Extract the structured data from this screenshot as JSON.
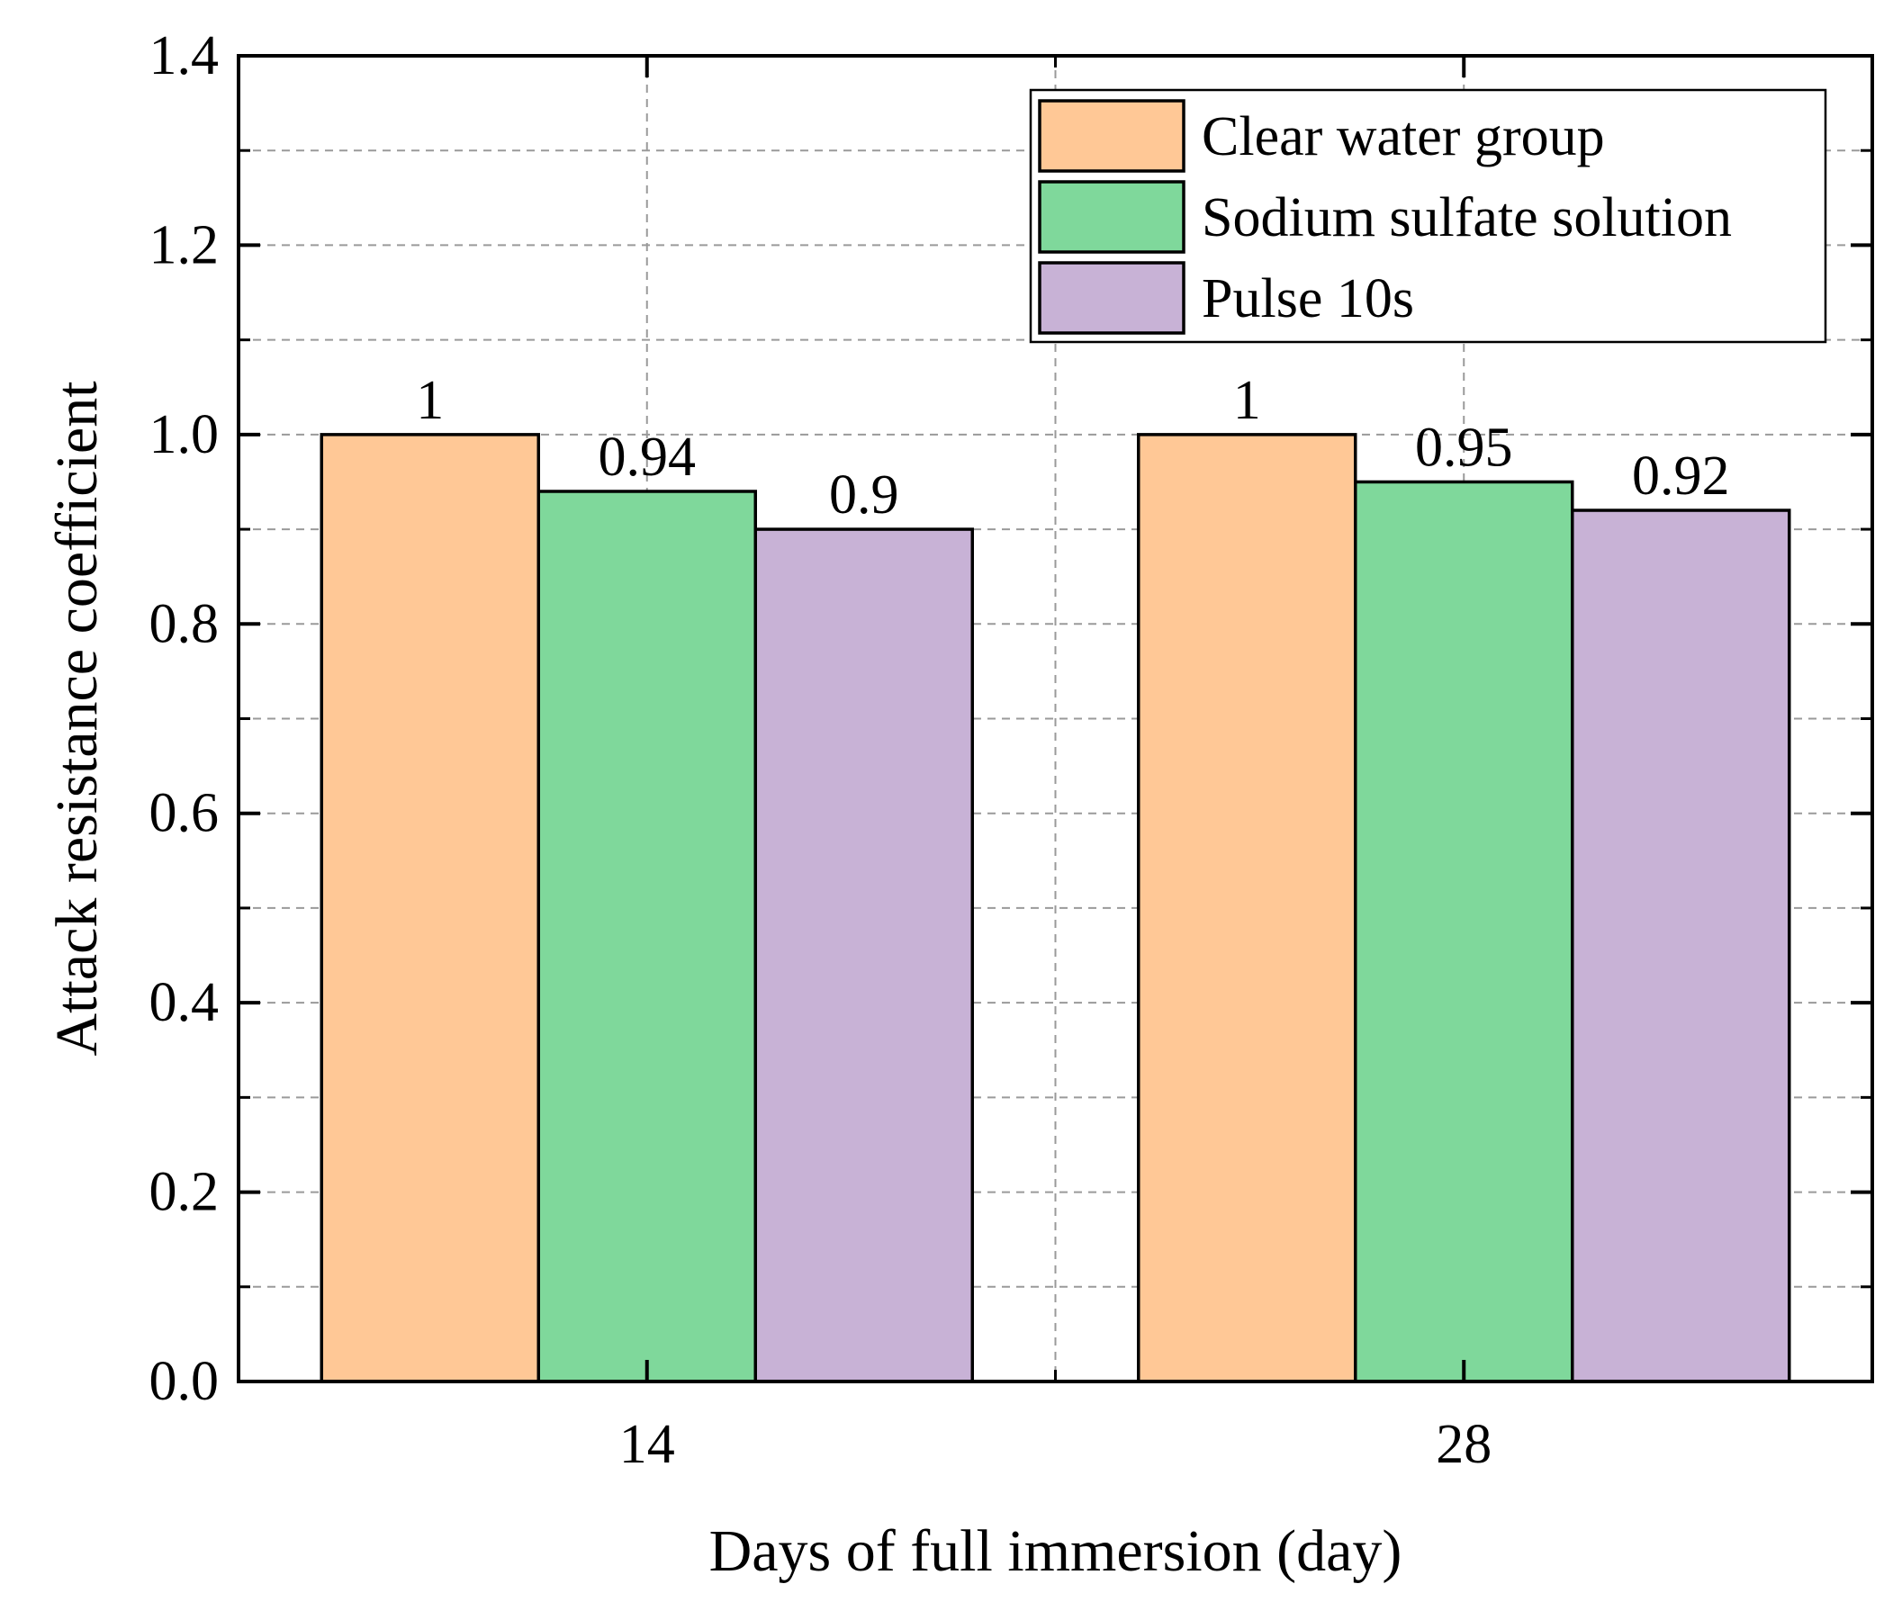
{
  "chart_data": {
    "type": "bar",
    "xlabel": "Days of full immersion (day)",
    "ylabel": "Attack resistance coefficient",
    "categories": [
      "14",
      "28"
    ],
    "series": [
      {
        "name": "Clear water group",
        "color": "#FFC896",
        "values": [
          1,
          1
        ],
        "labels": [
          "1",
          "1"
        ]
      },
      {
        "name": "Sodium sulfate solution",
        "color": "#7FD89B",
        "values": [
          0.94,
          0.95
        ],
        "labels": [
          "0.94",
          "0.95"
        ]
      },
      {
        "name": "Pulse 10s",
        "color": "#C8B2D6",
        "values": [
          0.9,
          0.92
        ],
        "labels": [
          "0.9",
          "0.92"
        ]
      }
    ],
    "ylim": [
      0,
      1.4
    ],
    "yticks": [
      "0.0",
      "0.2",
      "0.4",
      "0.6",
      "0.8",
      "1.0",
      "1.2",
      "1.4"
    ],
    "grid": true,
    "legend_position": "top-right"
  }
}
